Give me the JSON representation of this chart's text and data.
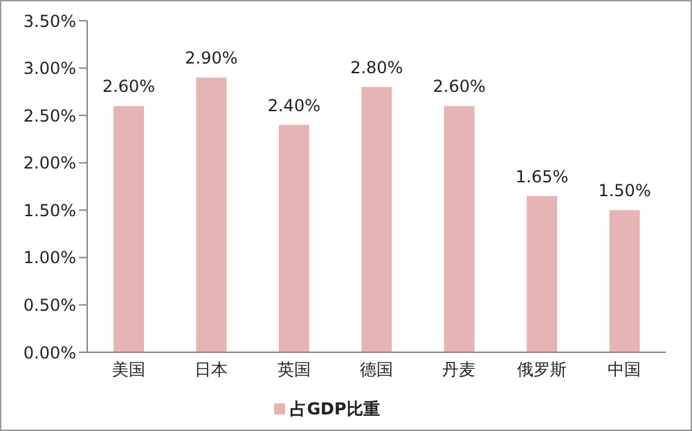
{
  "chart_data": {
    "type": "bar",
    "categories": [
      "美国",
      "日本",
      "英国",
      "德国",
      "丹麦",
      "俄罗斯",
      "中国"
    ],
    "series": [
      {
        "name": "占GDP比重",
        "color": "#e6b4b4",
        "values": [
          2.6,
          2.9,
          2.4,
          2.8,
          2.6,
          1.65,
          1.5
        ],
        "value_labels": [
          "2.60%",
          "2.90%",
          "2.40%",
          "2.80%",
          "2.60%",
          "1.65%",
          "1.50%"
        ]
      }
    ],
    "ylim": [
      0,
      3.5
    ],
    "yticks": [
      {
        "value": 0,
        "label": "0.00%"
      },
      {
        "value": 0.5,
        "label": "0.50%"
      },
      {
        "value": 1,
        "label": "1.00%"
      },
      {
        "value": 1.5,
        "label": "1.50%"
      },
      {
        "value": 2,
        "label": "2.00%"
      },
      {
        "value": 2.5,
        "label": "2.50%"
      },
      {
        "value": 3,
        "label": "3.00%"
      },
      {
        "value": 3.5,
        "label": "3.50%"
      }
    ],
    "grid": false,
    "legend": "bottom"
  }
}
